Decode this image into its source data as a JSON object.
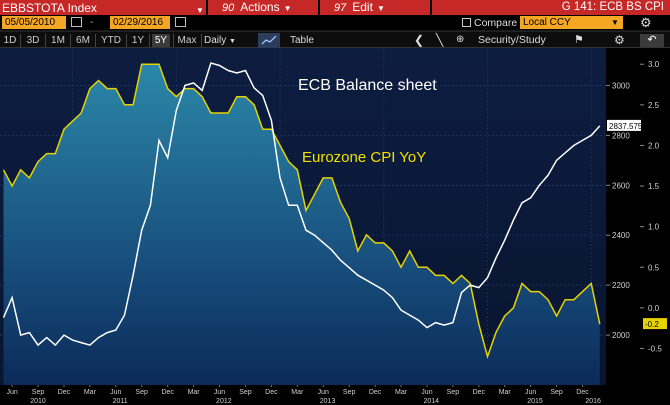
{
  "topbar": {
    "ticker": "EBBSTOTA Index",
    "actions": {
      "num": "90",
      "label": "Actions"
    },
    "edit": {
      "num": "97",
      "label": "Edit"
    },
    "title": "G 141: ECB BS CPI"
  },
  "controls": {
    "start_date": "05/05/2010",
    "date_sep": "-",
    "end_date": "02/29/2016",
    "compare_label": "Compare",
    "currency": "Local CCY"
  },
  "toolbar": {
    "timeframes": [
      "1D",
      "3D",
      "1M",
      "6M",
      "YTD",
      "1Y",
      "5Y",
      "Max"
    ],
    "selected_timeframe": "5Y",
    "frequency": "Daily",
    "table_label": "Table",
    "research_label": "Security/Study"
  },
  "colors": {
    "header_red": "#c62828",
    "input_orange": "#f5a623",
    "ecb_line": "#ffffff",
    "cpi_line": "#e6d200",
    "area_top": "#2b7f9e",
    "area_bottom": "#0a2a56",
    "background": "#0a1a38"
  },
  "chart_data": {
    "type": "line",
    "annotations": [
      "ECB Balance sheet",
      "Eurozone CPI YoY"
    ],
    "x_months": [
      "Jun",
      "Sep",
      "Dec",
      "Mar",
      "Jun",
      "Sep",
      "Dec",
      "Mar",
      "Jun",
      "Sep",
      "Dec",
      "Mar",
      "Jun",
      "Sep",
      "Dec",
      "Mar",
      "Jun",
      "Sep",
      "Dec",
      "Mar",
      "Jun",
      "Sep",
      "Dec"
    ],
    "x_years": [
      "2010",
      "2011",
      "2012",
      "2013",
      "2014",
      "2015",
      "2016"
    ],
    "left_axis": {
      "ticks": [
        2000,
        2200,
        2400,
        2600,
        2800,
        3000
      ],
      "range": [
        1800,
        3150
      ],
      "last_value_label": "2837.575"
    },
    "right_axis": {
      "ticks": [
        "-0.5",
        "0.0",
        "0.5",
        "1.0",
        "1.5",
        "2.0",
        "2.5",
        "3.0"
      ],
      "tick_values": [
        -0.5,
        0.0,
        0.5,
        1.0,
        1.5,
        2.0,
        2.5,
        3.0
      ],
      "range": [
        -0.95,
        3.2
      ],
      "last_value_label": "-0.2"
    },
    "series": [
      {
        "name": "ECB Balance sheet",
        "axis": "left",
        "x": [
          "2010-05",
          "2010-06",
          "2010-07",
          "2010-08",
          "2010-09",
          "2010-10",
          "2010-11",
          "2010-12",
          "2011-01",
          "2011-02",
          "2011-03",
          "2011-04",
          "2011-05",
          "2011-06",
          "2011-07",
          "2011-08",
          "2011-09",
          "2011-10",
          "2011-11",
          "2011-12",
          "2012-01",
          "2012-02",
          "2012-03",
          "2012-04",
          "2012-05",
          "2012-06",
          "2012-07",
          "2012-08",
          "2012-09",
          "2012-10",
          "2012-11",
          "2012-12",
          "2013-01",
          "2013-02",
          "2013-03",
          "2013-04",
          "2013-05",
          "2013-06",
          "2013-07",
          "2013-08",
          "2013-09",
          "2013-10",
          "2013-11",
          "2013-12",
          "2014-01",
          "2014-02",
          "2014-03",
          "2014-04",
          "2014-05",
          "2014-06",
          "2014-07",
          "2014-08",
          "2014-09",
          "2014-10",
          "2014-11",
          "2014-12",
          "2015-01",
          "2015-02",
          "2015-03",
          "2015-04",
          "2015-05",
          "2015-06",
          "2015-07",
          "2015-08",
          "2015-09",
          "2015-10",
          "2015-11",
          "2015-12",
          "2016-01",
          "2016-02"
        ],
        "values": [
          2070,
          2150,
          2000,
          2010,
          1960,
          1990,
          1960,
          2000,
          1980,
          1970,
          1960,
          1990,
          2010,
          2020,
          2080,
          2240,
          2420,
          2520,
          2780,
          2710,
          2900,
          3000,
          3010,
          2980,
          3090,
          3080,
          3060,
          3050,
          3060,
          2990,
          2960,
          2860,
          2630,
          2520,
          2520,
          2420,
          2400,
          2370,
          2340,
          2300,
          2270,
          2240,
          2220,
          2200,
          2180,
          2150,
          2100,
          2080,
          2060,
          2030,
          2050,
          2040,
          2050,
          2170,
          2200,
          2190,
          2230,
          2310,
          2380,
          2460,
          2530,
          2550,
          2600,
          2640,
          2700,
          2730,
          2760,
          2780,
          2800,
          2838
        ]
      },
      {
        "name": "Eurozone CPI YoY",
        "axis": "right",
        "x": [
          "2010-05",
          "2010-06",
          "2010-07",
          "2010-08",
          "2010-09",
          "2010-10",
          "2010-11",
          "2010-12",
          "2011-01",
          "2011-02",
          "2011-03",
          "2011-04",
          "2011-05",
          "2011-06",
          "2011-07",
          "2011-08",
          "2011-09",
          "2011-10",
          "2011-11",
          "2011-12",
          "2012-01",
          "2012-02",
          "2012-03",
          "2012-04",
          "2012-05",
          "2012-06",
          "2012-07",
          "2012-08",
          "2012-09",
          "2012-10",
          "2012-11",
          "2012-12",
          "2013-01",
          "2013-02",
          "2013-03",
          "2013-04",
          "2013-05",
          "2013-06",
          "2013-07",
          "2013-08",
          "2013-09",
          "2013-10",
          "2013-11",
          "2013-12",
          "2014-01",
          "2014-02",
          "2014-03",
          "2014-04",
          "2014-05",
          "2014-06",
          "2014-07",
          "2014-08",
          "2014-09",
          "2014-10",
          "2014-11",
          "2014-12",
          "2015-01",
          "2015-02",
          "2015-03",
          "2015-04",
          "2015-05",
          "2015-06",
          "2015-07",
          "2015-08",
          "2015-09",
          "2015-10",
          "2015-11",
          "2015-12",
          "2016-01",
          "2016-02"
        ],
        "values": [
          1.7,
          1.5,
          1.7,
          1.6,
          1.8,
          1.9,
          1.9,
          2.2,
          2.3,
          2.4,
          2.7,
          2.8,
          2.7,
          2.7,
          2.5,
          2.5,
          3.0,
          3.0,
          3.0,
          2.7,
          2.6,
          2.7,
          2.7,
          2.6,
          2.4,
          2.4,
          2.4,
          2.6,
          2.6,
          2.5,
          2.2,
          2.2,
          2.0,
          1.8,
          1.7,
          1.2,
          1.4,
          1.6,
          1.6,
          1.3,
          1.1,
          0.7,
          0.9,
          0.8,
          0.8,
          0.7,
          0.5,
          0.7,
          0.5,
          0.5,
          0.4,
          0.4,
          0.3,
          0.4,
          0.3,
          -0.2,
          -0.6,
          -0.3,
          -0.1,
          0.0,
          0.3,
          0.2,
          0.2,
          0.1,
          -0.1,
          0.1,
          0.1,
          0.2,
          0.3,
          -0.2
        ]
      }
    ]
  }
}
